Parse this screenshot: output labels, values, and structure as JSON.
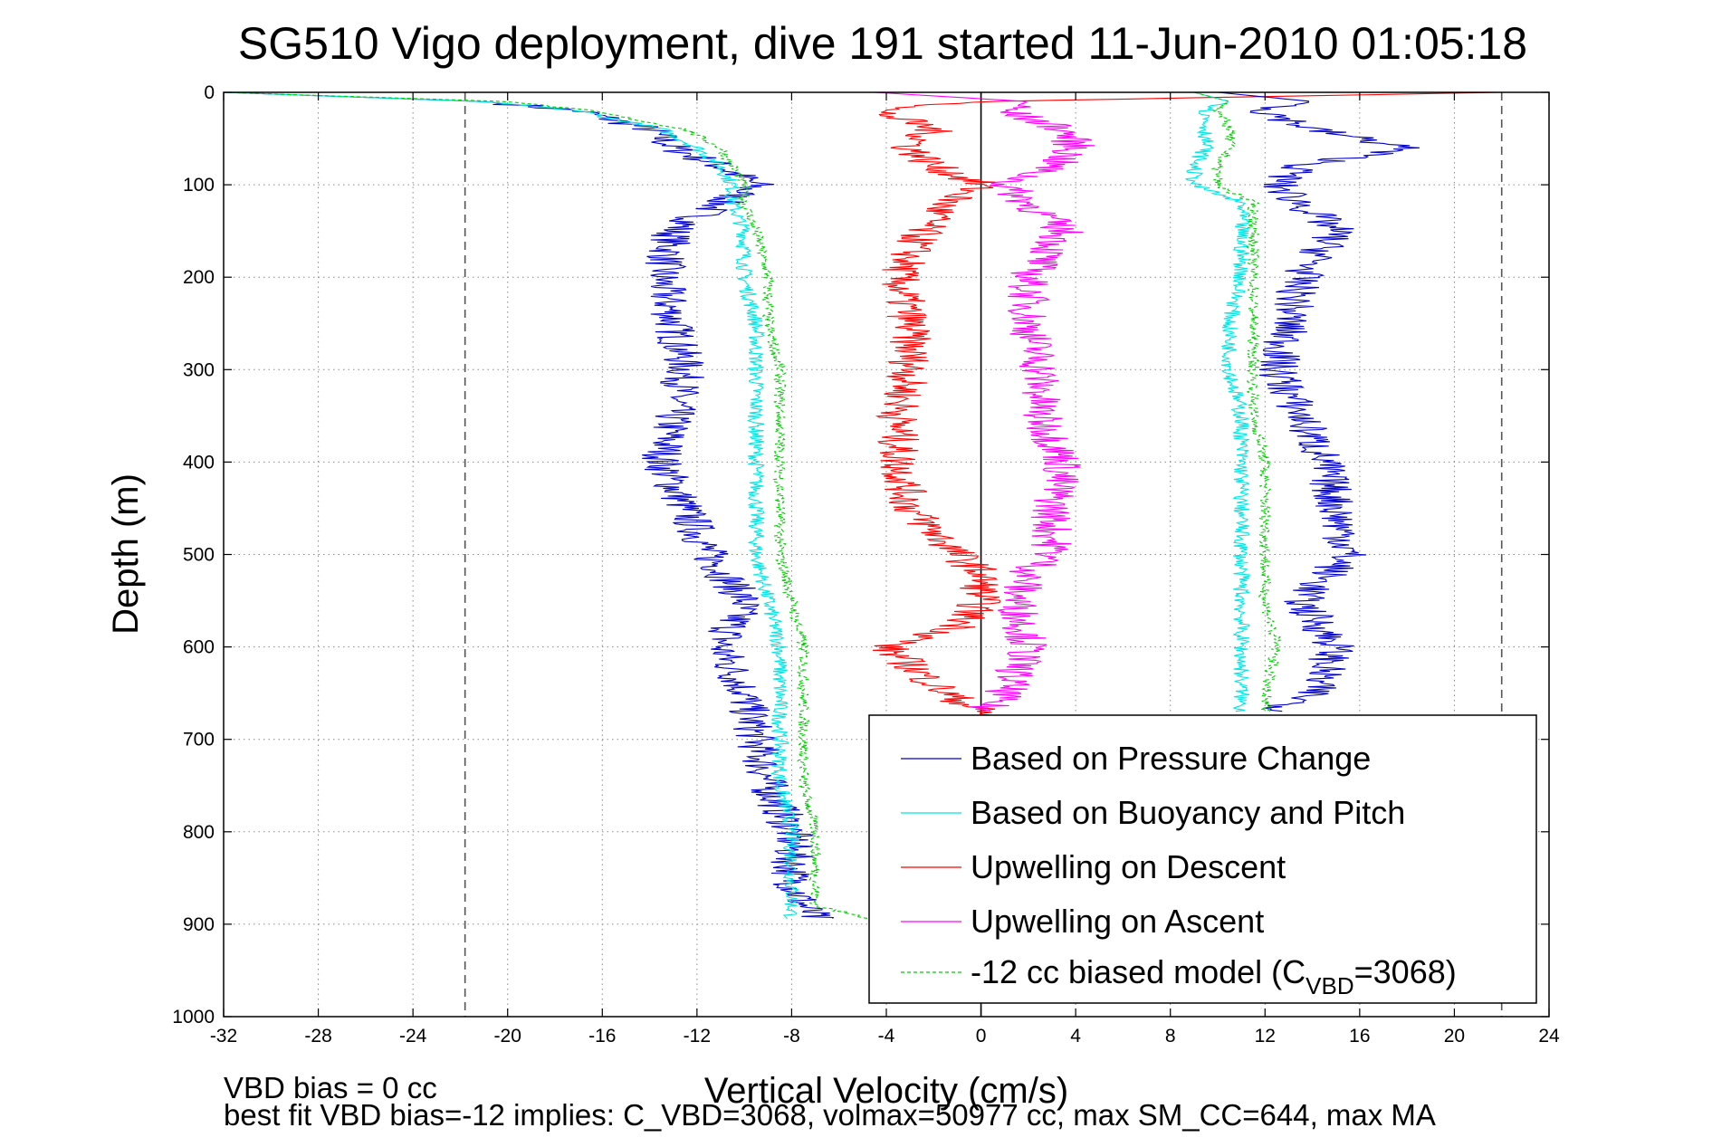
{
  "chart_data": {
    "type": "line",
    "title": "SG510 Vigo deployment, dive 191 started 11-Jun-2010 01:05:18",
    "xlabel": "Vertical Velocity (cm/s)",
    "ylabel": "Depth (m)",
    "xlim": [
      -32,
      24
    ],
    "ylim": [
      0,
      1000
    ],
    "y_reversed": true,
    "grid": true,
    "grid_style": "dotted",
    "x_ticks": [
      "-32",
      "-28",
      "-24",
      "-20",
      "-16",
      "-12",
      "-8",
      "-4",
      "0",
      "4",
      "8",
      "12",
      "16",
      "20",
      "24"
    ],
    "y_ticks": [
      "0",
      "100",
      "200",
      "300",
      "400",
      "500",
      "600",
      "700",
      "800",
      "900",
      "1000"
    ],
    "reference_lines": [
      {
        "x": -21.8,
        "style": "dashed",
        "color": "#555555"
      },
      {
        "x": 22,
        "style": "dashed",
        "color": "#555555"
      },
      {
        "x": 0,
        "style": "solid",
        "color": "#000000"
      }
    ],
    "legend": {
      "position": "bottom-right",
      "entries": [
        {
          "label": "Based on Pressure Change",
          "color": "#0000cc",
          "dash": "solid"
        },
        {
          "label": "Based on Buoyancy and Pitch",
          "color": "#00e5e5",
          "dash": "solid"
        },
        {
          "label": "Upwelling on Descent",
          "color": "#ff0000",
          "dash": "solid"
        },
        {
          "label": "Upwelling on Ascent",
          "color": "#ff00ff",
          "dash": "solid"
        },
        {
          "label_prefix": "-12 cc biased model (C",
          "label_sub": "VBD",
          "label_suffix": "=3068)",
          "color": "#00cc00",
          "dash": "dashed"
        }
      ]
    },
    "series": [
      {
        "name": "Based on Pressure Change (descent)",
        "color": "#0000cc",
        "depth": [
          0,
          10,
          20,
          40,
          60,
          80,
          100,
          120,
          150,
          200,
          250,
          300,
          350,
          400,
          450,
          500,
          550,
          600,
          650,
          700,
          750,
          800,
          850,
          880,
          895
        ],
        "velocity": [
          -32,
          -21,
          -17,
          -14,
          -13,
          -11,
          -9.5,
          -11,
          -13,
          -13.5,
          -13,
          -12.5,
          -13,
          -13.5,
          -12.5,
          -11.5,
          -10,
          -11,
          -10,
          -9.5,
          -9,
          -8,
          -8,
          -7.5,
          -7
        ]
      },
      {
        "name": "Based on Buoyancy and Pitch (descent)",
        "color": "#00e5e5",
        "depth": [
          0,
          10,
          20,
          40,
          60,
          80,
          100,
          120,
          150,
          200,
          250,
          300,
          350,
          400,
          450,
          500,
          550,
          600,
          650,
          700,
          750,
          800,
          850,
          880,
          895
        ],
        "velocity": [
          -32,
          -21,
          -17,
          -13.5,
          -12,
          -11,
          -10.5,
          -10.5,
          -10,
          -10,
          -9.5,
          -9.5,
          -9.5,
          -9.5,
          -9.5,
          -9.5,
          -9,
          -8.5,
          -8.5,
          -8.5,
          -8.5,
          -8,
          -8,
          -8,
          -8
        ]
      },
      {
        "name": "-12 cc biased model (descent)",
        "color": "#00cc00",
        "depth": [
          0,
          10,
          20,
          40,
          60,
          80,
          100,
          120,
          150,
          200,
          250,
          300,
          350,
          400,
          450,
          500,
          550,
          600,
          650,
          700,
          750,
          800,
          850,
          880,
          895
        ],
        "velocity": [
          -32,
          -20,
          -16.5,
          -12.5,
          -11,
          -10.5,
          -10,
          -10,
          -9.5,
          -9,
          -9,
          -8.5,
          -8.5,
          -8.5,
          -8.5,
          -8.5,
          -8,
          -7.5,
          -7.5,
          -7.5,
          -7.5,
          -7,
          -7,
          -7,
          -4.5
        ]
      },
      {
        "name": "Upwelling on Descent",
        "color": "#ff0000",
        "depth": [
          0,
          10,
          20,
          40,
          60,
          80,
          100,
          120,
          150,
          200,
          250,
          300,
          350,
          400,
          450,
          500,
          520,
          550,
          580,
          600,
          620,
          650,
          670,
          680
        ],
        "velocity": [
          22,
          0,
          -4.5,
          -2,
          -3,
          -2,
          0,
          -1.5,
          -2.5,
          -3.5,
          -3,
          -3,
          -3.5,
          -3.5,
          -3,
          -1,
          0,
          0,
          -1,
          -4,
          -3,
          -1.5,
          0,
          1
        ]
      },
      {
        "name": "Upwelling on Ascent",
        "color": "#ff00ff",
        "depth": [
          0,
          10,
          20,
          40,
          60,
          80,
          100,
          120,
          150,
          200,
          250,
          300,
          350,
          400,
          450,
          500,
          520,
          550,
          600,
          650,
          670
        ],
        "velocity": [
          -4.5,
          2,
          1,
          3.5,
          4,
          3,
          1,
          2,
          3.5,
          2,
          2,
          2.5,
          2.5,
          3.5,
          3,
          3,
          2,
          1.5,
          2,
          1,
          0
        ]
      },
      {
        "name": "Based on Pressure Change (ascent)",
        "color": "#0000cc",
        "depth": [
          0,
          10,
          20,
          40,
          60,
          80,
          100,
          120,
          150,
          200,
          250,
          300,
          350,
          400,
          450,
          500,
          550,
          600,
          650,
          670
        ],
        "velocity": [
          10,
          14,
          12,
          14,
          18,
          13.5,
          12.5,
          13.5,
          15,
          13.5,
          13,
          12.5,
          13.5,
          14.5,
          15,
          15.5,
          13.5,
          15,
          14,
          12.5
        ]
      },
      {
        "name": "Based on Buoyancy and Pitch (ascent)",
        "color": "#00e5e5",
        "depth": [
          0,
          10,
          20,
          40,
          60,
          80,
          100,
          120,
          150,
          200,
          250,
          300,
          350,
          400,
          450,
          500,
          550,
          600,
          650,
          670
        ],
        "velocity": [
          9,
          10.5,
          9.5,
          9.5,
          9.5,
          9,
          9,
          11,
          11,
          11,
          10.5,
          10.5,
          11,
          11,
          11,
          11,
          11,
          11,
          11,
          11
        ]
      },
      {
        "name": "-12 cc biased model (ascent)",
        "color": "#00cc00",
        "depth": [
          0,
          10,
          20,
          40,
          60,
          80,
          100,
          120,
          150,
          200,
          250,
          300,
          350,
          400,
          450,
          500,
          550,
          600,
          650,
          670
        ],
        "velocity": [
          9,
          10.5,
          10,
          10.5,
          10.5,
          10,
          10,
          11.5,
          11.5,
          11.5,
          11.5,
          11.5,
          11.5,
          12,
          12,
          12,
          12,
          12.5,
          12,
          12
        ]
      }
    ],
    "annotations": [
      "VBD bias = 0 cc",
      "best fit VBD bias=-12 implies: C_VBD=3068, volmax=50977 cc, max SM_CC=644, max MA"
    ]
  }
}
